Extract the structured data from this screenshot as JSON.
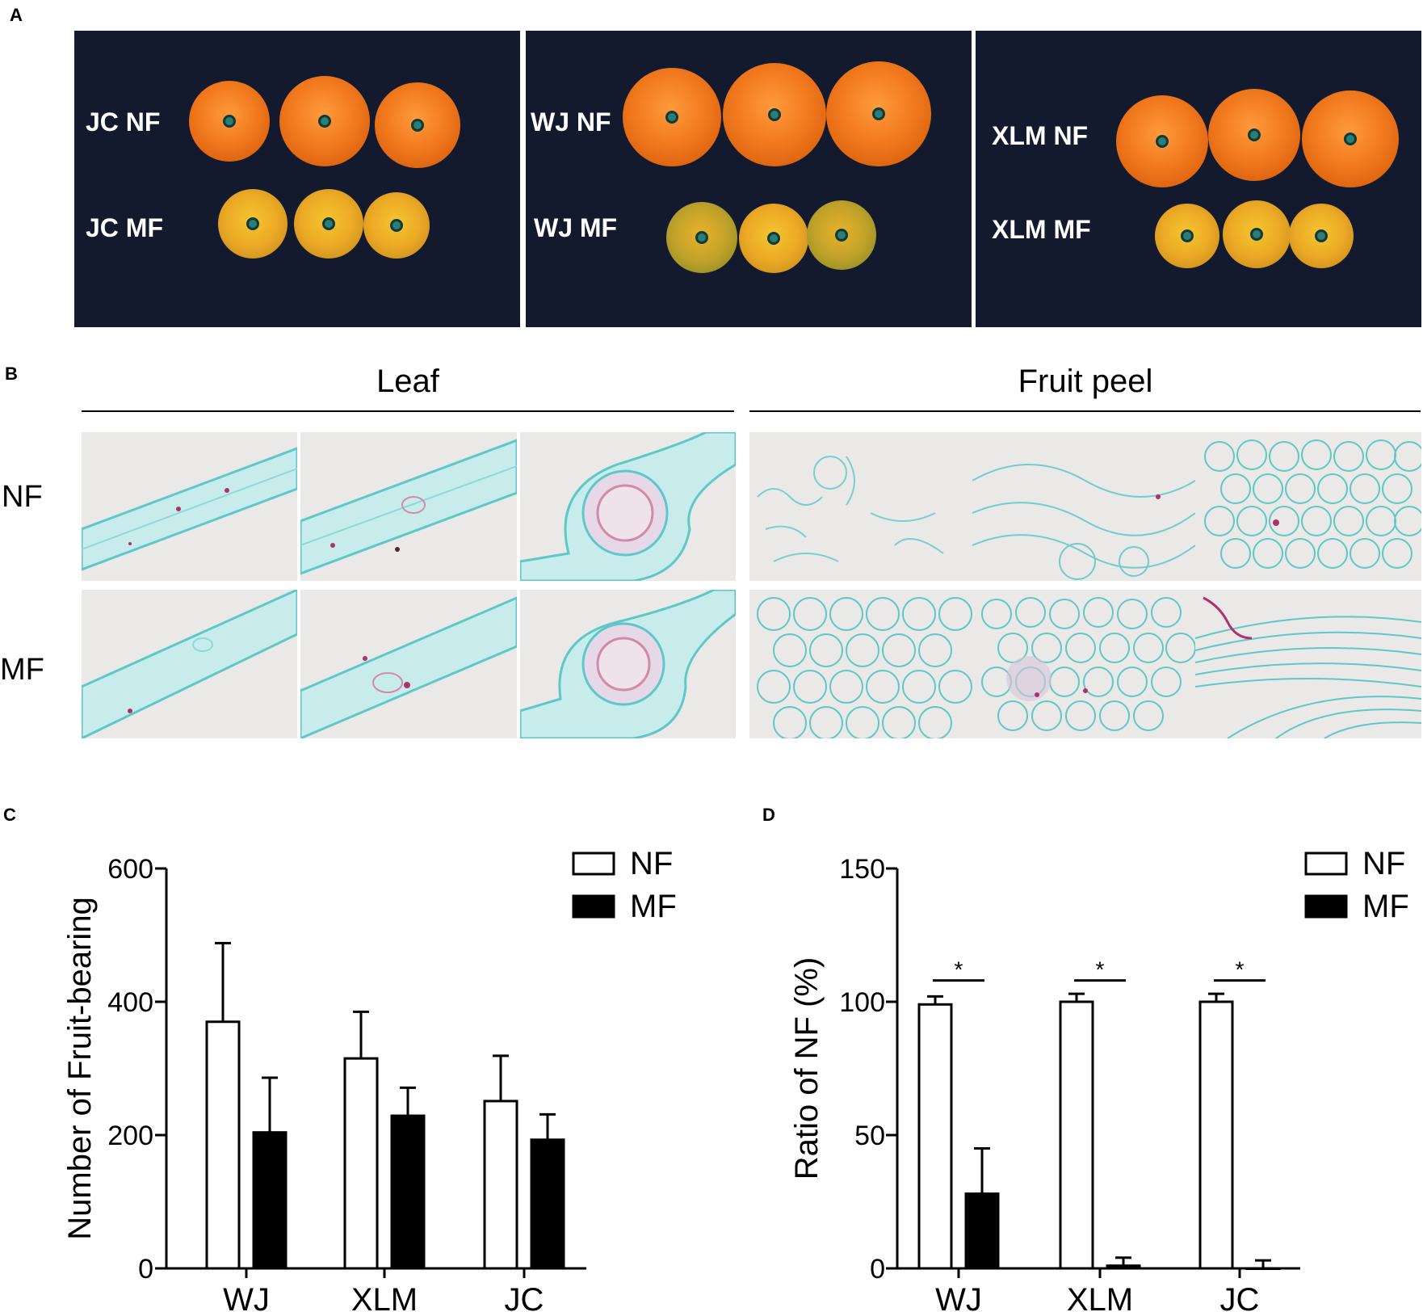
{
  "panels": {
    "a": {
      "letter": "A",
      "groups": [
        {
          "nf_label": "JC NF",
          "mf_label": "JC MF"
        },
        {
          "nf_label": "WJ NF",
          "mf_label": "WJ MF"
        },
        {
          "nf_label": "XLM NF",
          "mf_label": "XLM MF"
        }
      ]
    },
    "b": {
      "letter": "B",
      "leaf_title": "Leaf",
      "peel_title": "Fruit peel",
      "row_nf": "NF",
      "row_mf": "MF"
    },
    "c": {
      "letter": "C"
    },
    "d": {
      "letter": "D"
    }
  },
  "colors": {
    "photo_background": "#141a2e",
    "nf_bar": "#ffffff",
    "mf_bar": "#000000",
    "stain_green": "#5ec8c8",
    "stain_magenta": "#b0306e"
  },
  "chart_data": [
    {
      "type": "bar",
      "panel": "C",
      "categories": [
        "WJ",
        "XLM",
        "JC"
      ],
      "series": [
        {
          "name": "NF",
          "values": [
            370,
            315,
            251
          ],
          "errors": [
            118,
            70,
            68
          ]
        },
        {
          "name": "MF",
          "values": [
            204,
            229,
            193
          ],
          "errors": [
            82,
            42,
            38
          ]
        }
      ],
      "ylabel": "Number of Fruit-bearing",
      "xlabel": "",
      "ylim": [
        0,
        600
      ],
      "yticks": [
        0,
        200,
        400,
        600
      ],
      "legend": "top-right",
      "grid": false
    },
    {
      "type": "bar",
      "panel": "D",
      "categories": [
        "WJ",
        "XLM",
        "JC"
      ],
      "series": [
        {
          "name": "NF",
          "values": [
            99,
            100,
            100
          ],
          "errors": [
            3,
            3,
            3
          ]
        },
        {
          "name": "MF",
          "values": [
            28,
            1,
            0
          ],
          "errors": [
            17,
            3,
            3
          ]
        }
      ],
      "ylabel": "Ratio of NF (%)",
      "xlabel": "",
      "ylim": [
        0,
        150
      ],
      "yticks": [
        0,
        50,
        100,
        150
      ],
      "significance": [
        "*",
        "*",
        "*"
      ],
      "legend": "top-right",
      "grid": false
    }
  ]
}
